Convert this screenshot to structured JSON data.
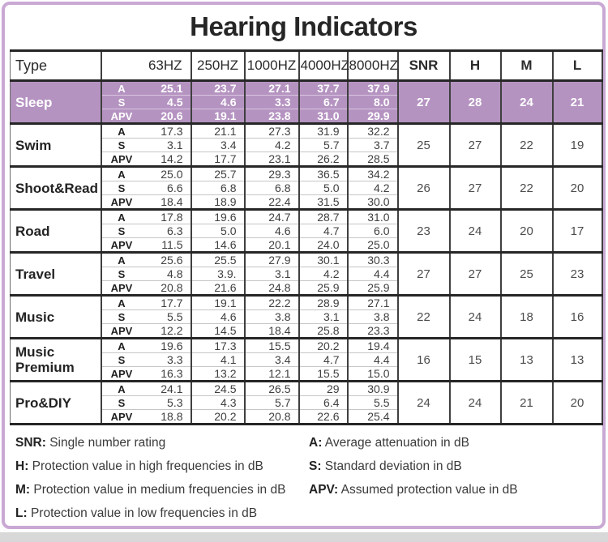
{
  "title": "Hearing Indicators",
  "colors": {
    "highlight_row": "#b593c1",
    "frame": "#c9a9d4",
    "table_line": "#262626",
    "bottom_strip": "#d8d8d8"
  },
  "table": {
    "col_headers": [
      "Type",
      "63HZ",
      "250HZ",
      "1000HZ",
      "4000HZ",
      "8000HZ",
      "SNR",
      "H",
      "M",
      "L"
    ],
    "sub_row_labels": [
      "A",
      "S",
      "APV"
    ],
    "rows": [
      {
        "type": "Sleep",
        "highlighted": true,
        "values": [
          [
            "25.1",
            "23.7",
            "27.1",
            "37.7",
            "37.9"
          ],
          [
            "4.5",
            "4.6",
            "3.3",
            "6.7",
            "8.0"
          ],
          [
            "20.6",
            "19.1",
            "23.8",
            "31.0",
            "29.9"
          ]
        ],
        "snr": "27",
        "h": "28",
        "m": "24",
        "l": "21"
      },
      {
        "type": "Swim",
        "highlighted": false,
        "values": [
          [
            "17.3",
            "21.1",
            "27.3",
            "31.9",
            "32.2"
          ],
          [
            "3.1",
            "3.4",
            "4.2",
            "5.7",
            "3.7"
          ],
          [
            "14.2",
            "17.7",
            "23.1",
            "26.2",
            "28.5"
          ]
        ],
        "snr": "25",
        "h": "27",
        "m": "22",
        "l": "19"
      },
      {
        "type": "Shoot&Read",
        "highlighted": false,
        "values": [
          [
            "25.0",
            "25.7",
            "29.3",
            "36.5",
            "34.2"
          ],
          [
            "6.6",
            "6.8",
            "6.8",
            "5.0",
            "4.2"
          ],
          [
            "18.4",
            "18.9",
            "22.4",
            "31.5",
            "30.0"
          ]
        ],
        "snr": "26",
        "h": "27",
        "m": "22",
        "l": "20"
      },
      {
        "type": "Road",
        "highlighted": false,
        "values": [
          [
            "17.8",
            "19.6",
            "24.7",
            "28.7",
            "31.0"
          ],
          [
            "6.3",
            "5.0",
            "4.6",
            "4.7",
            "6.0"
          ],
          [
            "11.5",
            "14.6",
            "20.1",
            "24.0",
            "25.0"
          ]
        ],
        "snr": "23",
        "h": "24",
        "m": "20",
        "l": "17"
      },
      {
        "type": "Travel",
        "highlighted": false,
        "values": [
          [
            "25.6",
            "25.5",
            "27.9",
            "30.1",
            "30.3"
          ],
          [
            "4.8",
            "3.9.",
            "3.1",
            "4.2",
            "4.4"
          ],
          [
            "20.8",
            "21.6",
            "24.8",
            "25.9",
            "25.9"
          ]
        ],
        "snr": "27",
        "h": "27",
        "m": "25",
        "l": "23"
      },
      {
        "type": "Music",
        "highlighted": false,
        "values": [
          [
            "17.7",
            "19.1",
            "22.2",
            "28.9",
            "27.1"
          ],
          [
            "5.5",
            "4.6",
            "3.8",
            "3.1",
            "3.8"
          ],
          [
            "12.2",
            "14.5",
            "18.4",
            "25.8",
            "23.3"
          ]
        ],
        "snr": "22",
        "h": "24",
        "m": "18",
        "l": "16"
      },
      {
        "type": "Music Premium",
        "highlighted": false,
        "values": [
          [
            "19.6",
            "17.3",
            "15.5",
            "20.2",
            "19.4"
          ],
          [
            "3.3",
            "4.1",
            "3.4",
            "4.7",
            "4.4"
          ],
          [
            "16.3",
            "13.2",
            "12.1",
            "15.5",
            "15.0"
          ]
        ],
        "snr": "16",
        "h": "15",
        "m": "13",
        "l": "13"
      },
      {
        "type": "Pro&DIY",
        "highlighted": false,
        "values": [
          [
            "24.1",
            "24.5",
            "26.5",
            "29",
            "30.9"
          ],
          [
            "5.3",
            "4.3",
            "5.7",
            "6.4",
            "5.5"
          ],
          [
            "18.8",
            "20.2",
            "20.8",
            "22.6",
            "25.4"
          ]
        ],
        "snr": "24",
        "h": "24",
        "m": "21",
        "l": "20"
      }
    ]
  },
  "legend": {
    "left": [
      {
        "term": "SNR:",
        "desc": " Single number rating"
      },
      {
        "term": "H:",
        "desc": " Protection value in high frequencies in dB"
      },
      {
        "term": "M:",
        "desc": " Protection value in medium frequencies in dB"
      },
      {
        "term": "L:",
        "desc": " Protection value in low frequencies in dB"
      }
    ],
    "right": [
      {
        "term": "A:",
        "desc": " Average attenuation in dB"
      },
      {
        "term": "S:",
        "desc": " Standard deviation in dB"
      },
      {
        "term": "APV:",
        "desc": " Assumed protection value in dB"
      }
    ]
  }
}
